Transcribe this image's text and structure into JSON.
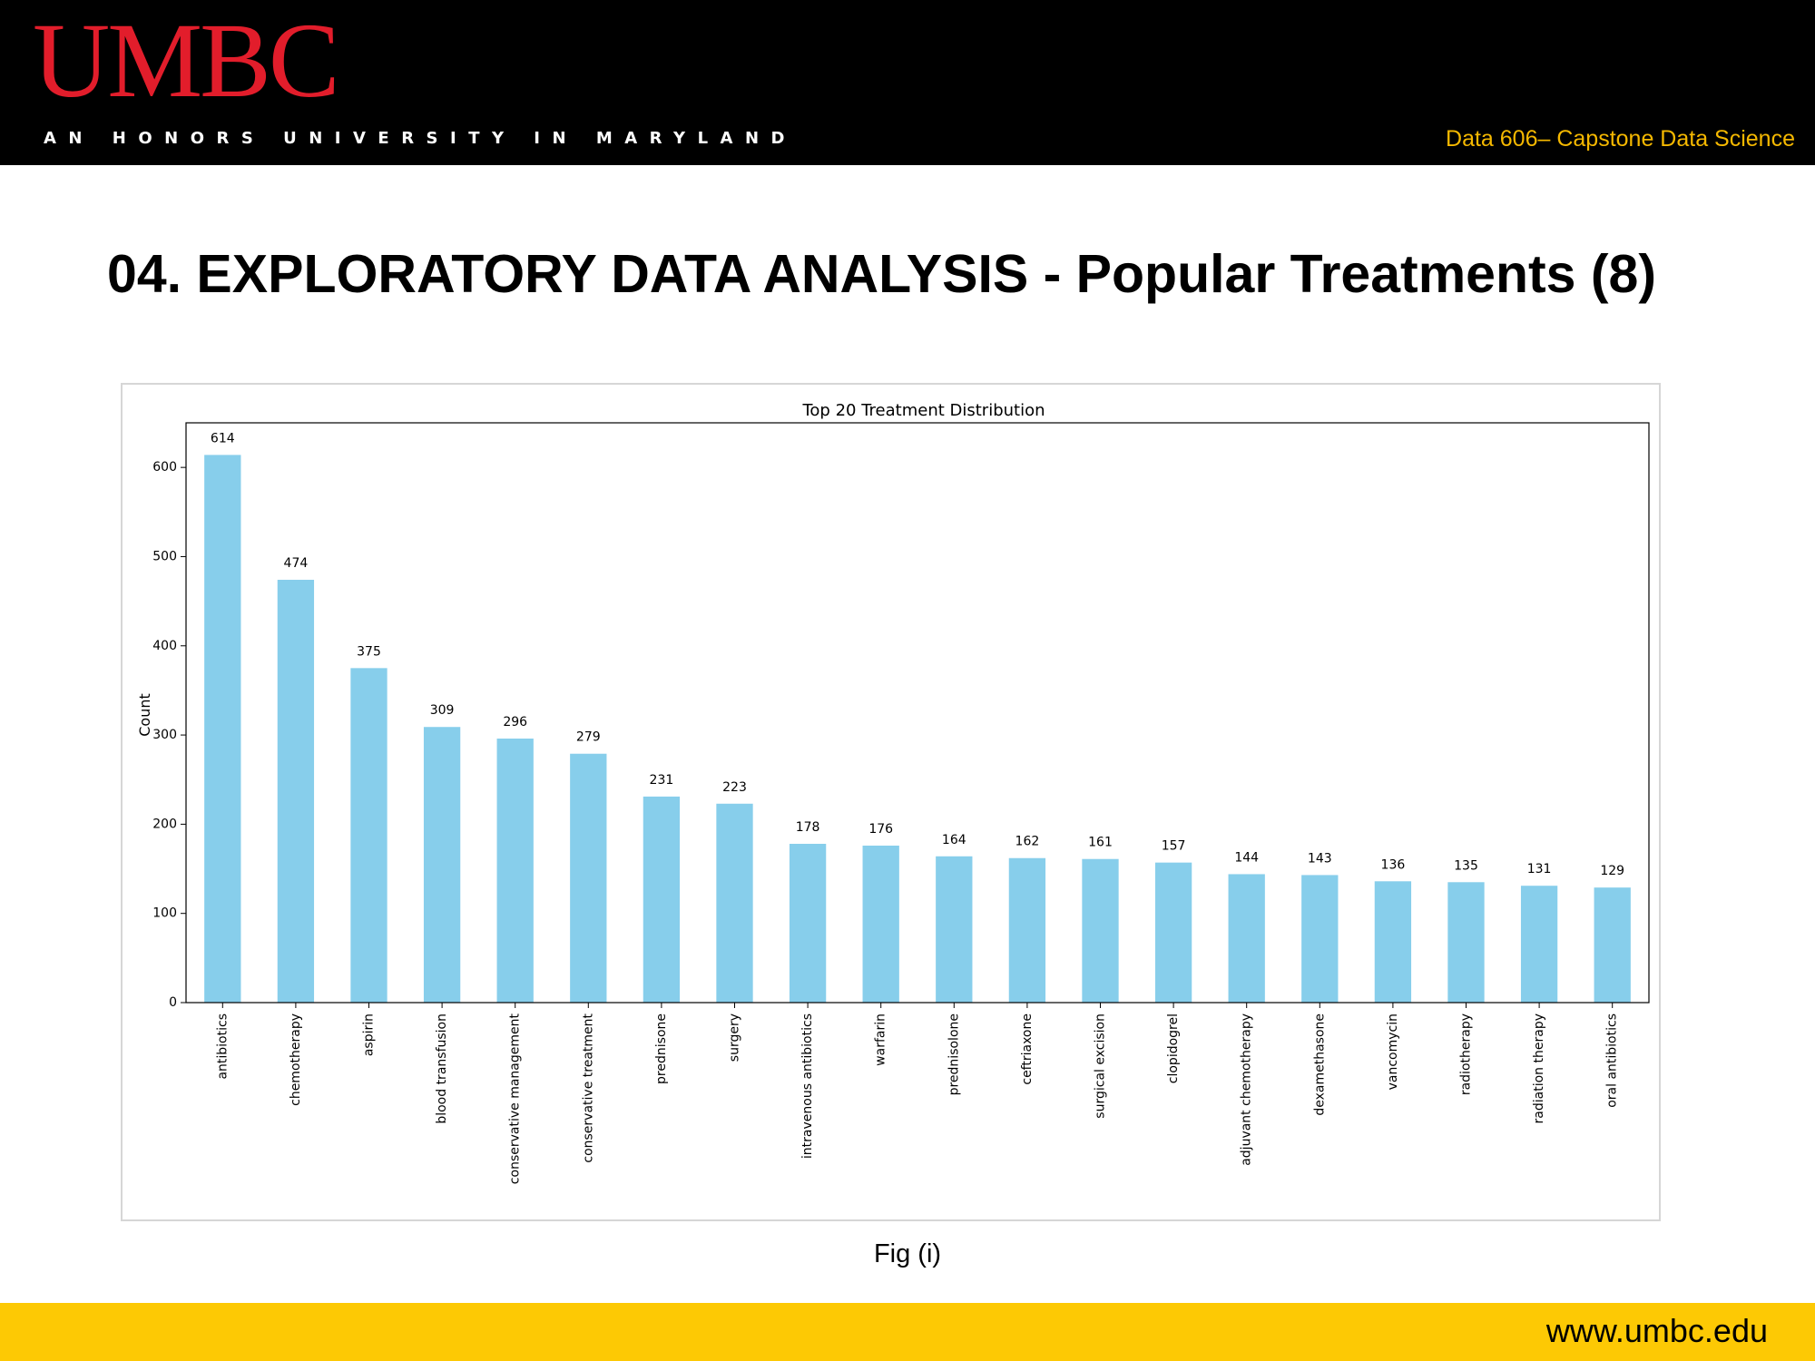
{
  "header": {
    "logo_text": "UMBC",
    "tagline": "AN HONORS UNIVERSITY IN MARYLAND",
    "course": "Data 606– Capstone Data Science"
  },
  "slide": {
    "title": "04. EXPLORATORY DATA ANALYSIS - Popular Treatments (8)",
    "caption": "Fig (i)"
  },
  "footer": {
    "url": "www.umbc.edu"
  },
  "colors": {
    "logo": "#e21d2b",
    "course_text": "#f5b800",
    "footer_band": "#fdc904",
    "bar": "#87ceeb"
  },
  "chart_data": {
    "type": "bar",
    "title": "Top 20 Treatment Distribution",
    "xlabel": "",
    "ylabel": "Count",
    "ylim": [
      0,
      650
    ],
    "yticks": [
      0,
      100,
      200,
      300,
      400,
      500,
      600
    ],
    "grid": false,
    "legend": "none",
    "categories": [
      "antibiotics",
      "chemotherapy",
      "aspirin",
      "blood transfusion",
      "conservative management",
      "conservative treatment",
      "prednisone",
      "surgery",
      "intravenous antibiotics",
      "warfarin",
      "prednisolone",
      "ceftriaxone",
      "surgical excision",
      "clopidogrel",
      "adjuvant chemotherapy",
      "dexamethasone",
      "vancomycin",
      "radiotherapy",
      "radiation therapy",
      "oral antibiotics"
    ],
    "values": [
      614,
      474,
      375,
      309,
      296,
      279,
      231,
      223,
      178,
      176,
      164,
      162,
      161,
      157,
      144,
      143,
      136,
      135,
      131,
      129
    ]
  }
}
